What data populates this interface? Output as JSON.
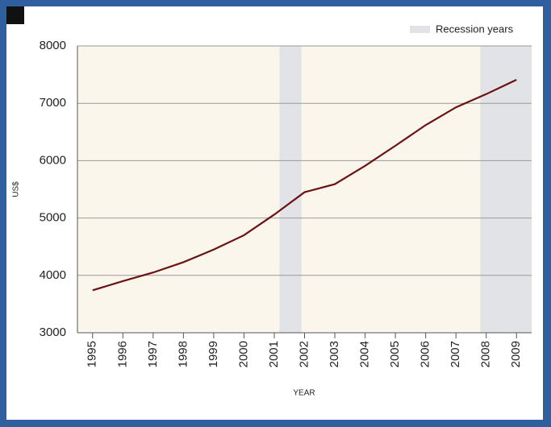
{
  "chart_data": {
    "type": "line",
    "ylabel": "US$",
    "xlabel": "YEAR",
    "x": [
      1995,
      1996,
      1997,
      1998,
      1999,
      2000,
      2001,
      2002,
      2003,
      2004,
      2005,
      2006,
      2007,
      2008,
      2009
    ],
    "values": [
      3740,
      3900,
      4050,
      4230,
      4450,
      4700,
      5060,
      5450,
      5590,
      5910,
      6260,
      6620,
      6930,
      7160,
      7410
    ],
    "color": "#6b1212",
    "xlim": [
      1994.5,
      2009.5
    ],
    "xticks": [
      1995,
      1996,
      1997,
      1998,
      1999,
      2000,
      2001,
      2002,
      2003,
      2004,
      2005,
      2006,
      2007,
      2008,
      2009
    ],
    "ylim": [
      3000,
      8000
    ],
    "yticks": [
      3000,
      4000,
      5000,
      6000,
      7000,
      8000
    ],
    "grid": true,
    "shaded_regions": {
      "name": "Recession years",
      "color": "#e2e3e6",
      "spans": [
        [
          2001.17,
          2001.9
        ],
        [
          2007.8,
          2009.5
        ]
      ]
    }
  }
}
